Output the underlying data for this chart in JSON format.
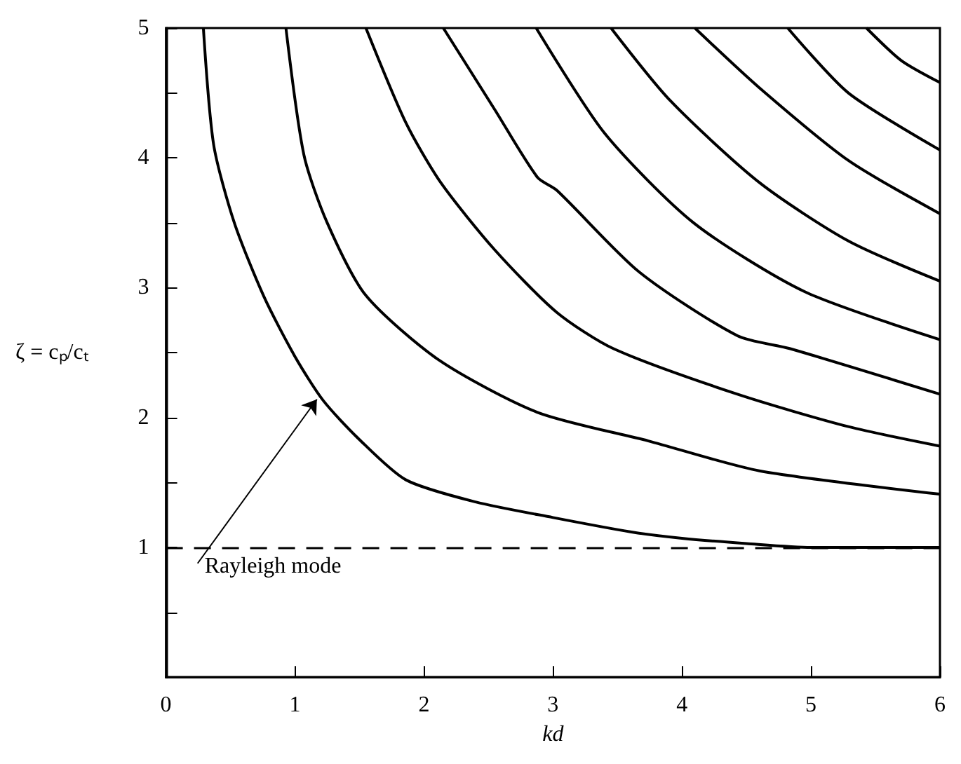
{
  "chart_data": {
    "type": "line",
    "xlabel": "kd",
    "ylabel": "ζ = cₚ/cₜ",
    "xlim": [
      0,
      6
    ],
    "ylim": [
      0,
      5
    ],
    "xticks": [
      0,
      1,
      2,
      3,
      4,
      5,
      6
    ],
    "yticks": [
      {
        "value": 0.5,
        "label": null
      },
      1,
      {
        "value": 1.5,
        "label": null
      },
      2,
      {
        "value": 2.5,
        "label": null
      },
      3,
      {
        "value": 3.5,
        "label": null
      },
      4,
      {
        "value": 4.5,
        "label": null
      },
      5
    ],
    "series": [
      {
        "color": "#000000",
        "x": [
          0.29,
          0.37,
          0.53,
          0.76,
          1.0,
          1.22,
          1.5,
          1.86,
          2.4,
          3.0,
          3.6,
          4.0,
          4.5,
          5.0,
          5.5,
          6.0
        ],
        "values": [
          5,
          4.1,
          3.5,
          2.93,
          2.47,
          2.13,
          1.83,
          1.52,
          1.35,
          1.23,
          1.12,
          1.07,
          1.03,
          1.0,
          1.0,
          1.0
        ]
      },
      {
        "color": "#000000",
        "x": [
          0.93,
          1.07,
          1.25,
          1.55,
          2.12,
          2.88,
          3.74,
          4.6,
          6.0
        ],
        "values": [
          5,
          4.02,
          3.5,
          2.94,
          2.44,
          2.04,
          1.82,
          1.59,
          1.41
        ]
      },
      {
        "color": "#000000",
        "x": [
          1.55,
          1.86,
          2.13,
          2.55,
          3.03,
          3.47,
          4.43,
          5.29,
          6.0
        ],
        "values": [
          5,
          4.27,
          3.81,
          3.29,
          2.81,
          2.53,
          2.18,
          1.93,
          1.78
        ]
      },
      {
        "color": "#000000",
        "x": [
          2.15,
          2.55,
          2.88,
          3.03,
          3.67,
          4.43,
          4.84,
          6.0
        ],
        "values": [
          5,
          4.37,
          3.85,
          3.75,
          3.12,
          2.63,
          2.53,
          2.18
        ]
      },
      {
        "color": "#000000",
        "x": [
          2.87,
          3.4,
          4.09,
          4.95,
          6.0
        ],
        "values": [
          5,
          4.19,
          3.5,
          2.97,
          2.6
        ]
      },
      {
        "color": "#000000",
        "x": [
          3.45,
          3.91,
          4.6,
          5.29,
          6.0
        ],
        "values": [
          5,
          4.44,
          3.81,
          3.36,
          3.05
        ]
      },
      {
        "color": "#000000",
        "x": [
          4.1,
          4.6,
          5.29,
          6.0
        ],
        "values": [
          5,
          4.54,
          3.98,
          3.57
        ]
      },
      {
        "color": "#000000",
        "x": [
          4.82,
          5.29,
          6.0
        ],
        "values": [
          5,
          4.5,
          4.06
        ]
      },
      {
        "color": "#000000",
        "x": [
          5.43,
          5.7,
          6.0
        ],
        "values": [
          5,
          4.75,
          4.58
        ]
      }
    ],
    "ref_lines": [
      {
        "axis": "y",
        "value": 1,
        "line_style": "dashed",
        "color": "#000000"
      }
    ],
    "annotations": [
      {
        "text": "Rayleigh mode",
        "x": 1.17,
        "y": 2.14
      }
    ],
    "grid": false
  }
}
